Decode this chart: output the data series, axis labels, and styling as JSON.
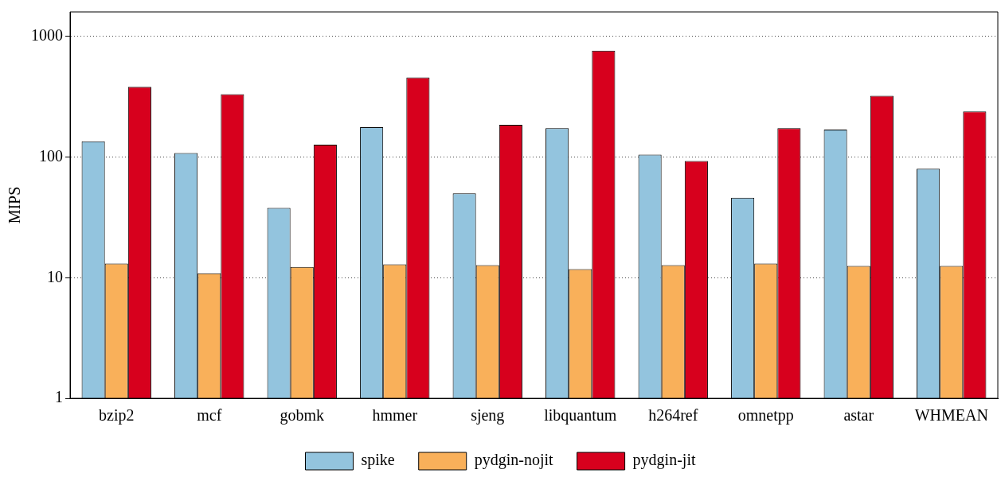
{
  "chart_data": {
    "type": "bar",
    "ylabel": "MIPS",
    "log": true,
    "grid": "y",
    "line_style": "dotted",
    "legend": "bottom",
    "categories": [
      "bzip2",
      "mcf",
      "gobmk",
      "hmmer",
      "sjeng",
      "libquantum",
      "h264ref",
      "omnetpp",
      "astar",
      "WHMEAN"
    ],
    "ylim": [
      1,
      1600
    ],
    "yticks": [
      1,
      10,
      100,
      1000
    ],
    "series": [
      {
        "name": "spike",
        "color": "#93c4de",
        "values": [
          135,
          108,
          38,
          177,
          50,
          174,
          105,
          46,
          169,
          80
        ]
      },
      {
        "name": "pydgin-nojit",
        "color": "#f9b05a",
        "values": [
          13.1,
          10.9,
          12.3,
          12.9,
          12.7,
          11.8,
          12.7,
          13.1,
          12.5,
          12.5
        ]
      },
      {
        "name": "pydgin-jit",
        "color": "#d7001d",
        "values": [
          382,
          333,
          127,
          457,
          185,
          762,
          93,
          174,
          323,
          239
        ]
      }
    ]
  }
}
